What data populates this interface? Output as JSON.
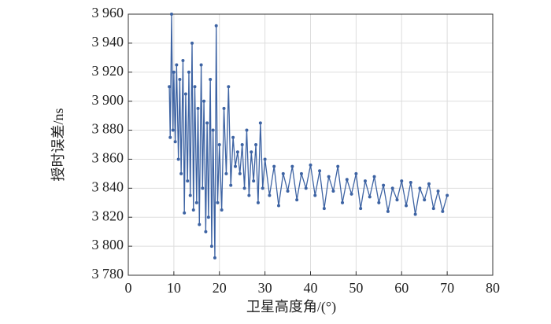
{
  "chart_data": {
    "type": "line",
    "xlabel": "卫星高度角/(°)",
    "ylabel": "授时误差/ns",
    "xlim": [
      0,
      80
    ],
    "xticks": [
      0,
      10,
      20,
      30,
      40,
      50,
      60,
      70,
      80
    ],
    "ylim": [
      3780,
      3960
    ],
    "yticks": [
      {
        "value": 3780,
        "label": "3 780"
      },
      {
        "value": 3800,
        "label": "3 800"
      },
      {
        "value": 3820,
        "label": "3 820"
      },
      {
        "value": 3840,
        "label": "3 840"
      },
      {
        "value": 3860,
        "label": "3 860"
      },
      {
        "value": 3880,
        "label": "3 880"
      },
      {
        "value": 3900,
        "label": "3 900"
      },
      {
        "value": 3920,
        "label": "3 920"
      },
      {
        "value": 3940,
        "label": "3 940"
      },
      {
        "value": 3960,
        "label": "3 960"
      }
    ],
    "grid": true,
    "series": [
      {
        "color": "#3d63a3",
        "x": [
          9.0,
          9.2,
          9.5,
          9.8,
          10.0,
          10.3,
          10.6,
          11.0,
          11.3,
          11.6,
          12.0,
          12.3,
          12.6,
          13.0,
          13.3,
          13.6,
          14.0,
          14.3,
          14.6,
          15.0,
          15.3,
          15.6,
          16.0,
          16.3,
          16.6,
          17.0,
          17.3,
          17.6,
          18.0,
          18.3,
          18.6,
          19.0,
          19.3,
          19.6,
          20.0,
          20.5,
          21,
          21.5,
          22,
          22.5,
          23,
          23.5,
          24,
          24.5,
          25,
          25.5,
          26,
          26.5,
          27,
          27.5,
          28,
          28.5,
          29,
          29.5,
          30,
          31,
          32,
          33,
          34,
          35,
          36,
          37,
          38,
          39,
          40,
          41,
          42,
          43,
          44,
          45,
          46,
          47,
          48,
          49,
          50,
          51,
          52,
          53,
          54,
          55,
          56,
          57,
          58,
          59,
          60,
          61,
          62,
          63,
          64,
          65,
          66,
          67,
          68,
          69,
          70
        ],
        "values": [
          3910,
          3875,
          3960,
          3880,
          3920,
          3872,
          3925,
          3860,
          3915,
          3850,
          3928,
          3823,
          3905,
          3845,
          3920,
          3835,
          3940,
          3825,
          3910,
          3830,
          3895,
          3815,
          3925,
          3840,
          3900,
          3810,
          3885,
          3820,
          3915,
          3800,
          3880,
          3792,
          3952,
          3830,
          3870,
          3825,
          3895,
          3850,
          3910,
          3842,
          3875,
          3855,
          3865,
          3850,
          3870,
          3840,
          3880,
          3835,
          3865,
          3845,
          3870,
          3830,
          3885,
          3840,
          3860,
          3835,
          3855,
          3828,
          3850,
          3838,
          3855,
          3832,
          3850,
          3840,
          3856,
          3835,
          3852,
          3826,
          3848,
          3838,
          3855,
          3830,
          3846,
          3836,
          3850,
          3826,
          3845,
          3834,
          3848,
          3830,
          3842,
          3824,
          3840,
          3832,
          3845,
          3828,
          3844,
          3822,
          3840,
          3832,
          3843,
          3826,
          3838,
          3824,
          3835
        ]
      }
    ]
  }
}
